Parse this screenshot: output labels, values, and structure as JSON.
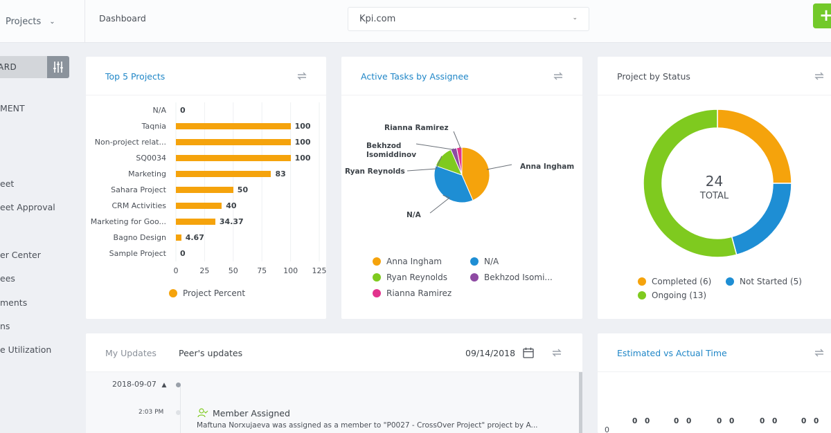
{
  "topbar": {
    "project_switch": "Projects",
    "breadcrumb": "Dashboard",
    "workspace": "Kpi.com",
    "add_label": "+"
  },
  "sidebar": {
    "dashboard_label": "ARD",
    "items": [
      "MENT",
      "eet",
      "eet Approval",
      "er Center",
      "ees",
      "ments",
      "ns",
      "e Utilization"
    ]
  },
  "cards": {
    "top_projects": {
      "title": "Top 5 Projects"
    },
    "active_tasks": {
      "title": "Active Tasks by Assignee"
    },
    "project_status": {
      "title": "Project by Status",
      "total_value": "24",
      "total_label": "TOTAL"
    },
    "updates": {
      "tab_my": "My Updates",
      "tab_peer": "Peer's updates",
      "date": "09/14/2018",
      "group_date": "2018-09-07",
      "entry_time": "2:03 PM",
      "entry_title": "Member Assigned",
      "entry_text": "Maftuna Norxujaeva was assigned as a member to \"P0027 - CrossOver Project\" project by A..."
    },
    "estimated": {
      "title": "Estimated vs Actual Time",
      "y_first_tick": "0",
      "values": [
        "0",
        "0",
        "0",
        "0",
        "0",
        "0",
        "0",
        "0",
        "0",
        "0"
      ]
    }
  },
  "colors": {
    "accent": "#1f86c7",
    "orange": "#f5a30c",
    "blue": "#1e8ed4",
    "green": "#7fca1f",
    "purple": "#8e4aa3",
    "pink": "#e2338d",
    "add": "#73c92a"
  },
  "chart_data": [
    {
      "type": "bar",
      "orientation": "horizontal",
      "categories": [
        "N/A",
        "Taqnia",
        "Non-project relat...",
        "SQ0034",
        "Marketing",
        "Sahara Project",
        "CRM Activities",
        "Marketing for Goo...",
        "Bagno Design",
        "Sample Project"
      ],
      "values": [
        0,
        100,
        100,
        100,
        83,
        50,
        40,
        34.37,
        4.67,
        0
      ],
      "value_labels": [
        "0",
        "100",
        "100",
        "100",
        "83",
        "50",
        "40",
        "34.37",
        "4.67",
        "0"
      ],
      "x_ticks": [
        "0",
        "25",
        "50",
        "75",
        "100",
        "125"
      ],
      "xlim": [
        0,
        125
      ],
      "series": [
        {
          "name": "Project Percent",
          "color": "#f5a30c"
        }
      ],
      "grid": true,
      "legend": "bottom"
    },
    {
      "type": "pie",
      "slices": [
        {
          "label": "Anna Ingham",
          "value": 10,
          "color": "#f5a30c"
        },
        {
          "label": "N/A",
          "value": 8.5,
          "color": "#1e8ed4"
        },
        {
          "label": "Ryan Reynolds",
          "value": 3,
          "color": "#7fca1f"
        },
        {
          "label": "Bekhzod Isomiddinov",
          "value": 0.8,
          "color": "#8e4aa3"
        },
        {
          "label": "Rianna Ramirez",
          "value": 0.7,
          "color": "#e2338d"
        }
      ],
      "callout_labels": [
        "Rianna Ramirez",
        "Bekhzod",
        "Isomiddinov",
        "Ryan Reynolds",
        "Anna Ingham",
        "N/A"
      ],
      "legend_labels": [
        "Anna Ingham",
        "N/A",
        "Ryan Reynolds",
        "Bekhzod Isomi...",
        "Rianna Ramirez"
      ],
      "legend": "bottom"
    },
    {
      "type": "pie",
      "donut": true,
      "slices": [
        {
          "label": "Completed (6)",
          "value": 6,
          "color": "#f5a30c"
        },
        {
          "label": "Not Started (5)",
          "value": 5,
          "color": "#1e8ed4"
        },
        {
          "label": "Ongoing (13)",
          "value": 13,
          "color": "#7fca1f"
        }
      ],
      "legend": "bottom"
    }
  ]
}
